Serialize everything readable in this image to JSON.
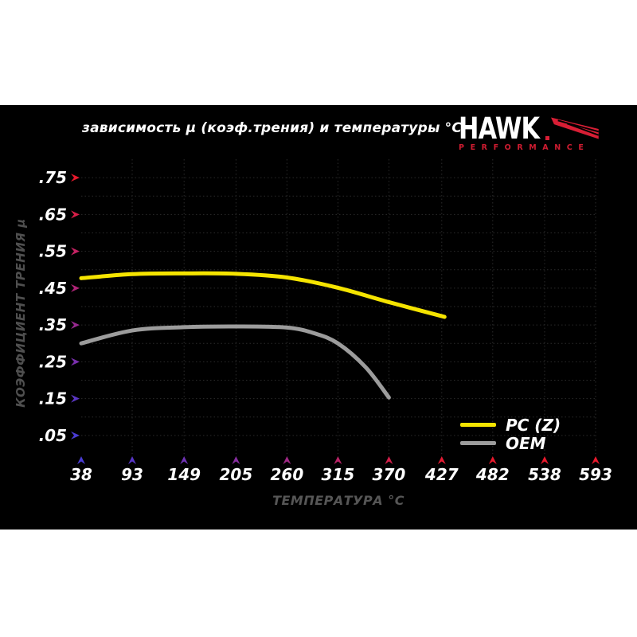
{
  "page": {
    "background": "#ffffff",
    "panel_background": "#000000"
  },
  "header": {
    "title": "зависимость μ (коэф.трения) и температуры °C"
  },
  "logo": {
    "brand": "HAWK",
    "subbrand": "PERFORMANCE",
    "brand_color": "#ffffff",
    "accent_color": "#d81e35"
  },
  "chart_data": {
    "type": "line",
    "title": "зависимость μ (коэф.трения) и температуры °C",
    "xlabel": "ТЕМПЕРАТУРА °C",
    "ylabel": "КОЭФФИЦИЕНТ ТРЕНИЯ μ",
    "xlim": [
      38,
      593
    ],
    "ylim": [
      0,
      0.8
    ],
    "x_ticks": [
      38,
      93,
      149,
      205,
      260,
      315,
      370,
      427,
      482,
      538,
      593
    ],
    "y_ticks": [
      0.75,
      0.65,
      0.55,
      0.45,
      0.35,
      0.25,
      0.15,
      0.05
    ],
    "y_tick_labels": [
      ".75",
      ".65",
      ".55",
      ".45",
      ".35",
      ".25",
      ".15",
      ".05"
    ],
    "grid": {
      "horizontal_step": 0.05,
      "vertical_at_ticks": true,
      "color": "#2b2b2b",
      "style": "dotted"
    },
    "legend_position": "lower right",
    "axis_style": {
      "y_gradient": [
        {
          "offset": "0%",
          "color": "#e8192c"
        },
        {
          "offset": "45%",
          "color": "#c02070"
        },
        {
          "offset": "70%",
          "color": "#8c2b9b"
        },
        {
          "offset": "96%",
          "color": "#4a3cd4"
        }
      ],
      "x_gradient": [
        {
          "offset": "0%",
          "color": "#4a3cd4"
        },
        {
          "offset": "30%",
          "color": "#8c2b9b"
        },
        {
          "offset": "50%",
          "color": "#c02070"
        },
        {
          "offset": "70%",
          "color": "#e8192c"
        },
        {
          "offset": "100%",
          "color": "#e8192c"
        }
      ],
      "y_tick_arrow_colors": [
        "#e8192c",
        "#d81e48",
        "#c52263",
        "#b02478",
        "#97288f",
        "#7a2fae",
        "#5b36c4",
        "#4a3cd4"
      ],
      "x_tick_arrow_colors": [
        "#4a3cd4",
        "#5836c7",
        "#6e32b4",
        "#862d9f",
        "#a02886",
        "#bb2468",
        "#d21f4a",
        "#e41b33",
        "#e8192c",
        "#e8192c",
        "#e8192c"
      ],
      "tick_label_color": "#ffffff"
    },
    "series": [
      {
        "name": "PC (Z)",
        "color": "#f5e400",
        "points": [
          [
            38,
            0.477
          ],
          [
            93,
            0.488
          ],
          [
            149,
            0.49
          ],
          [
            205,
            0.489
          ],
          [
            260,
            0.479
          ],
          [
            315,
            0.451
          ],
          [
            370,
            0.412
          ],
          [
            430,
            0.372
          ]
        ]
      },
      {
        "name": "OEM",
        "color": "#9c9c9c",
        "points": [
          [
            38,
            0.3
          ],
          [
            93,
            0.335
          ],
          [
            149,
            0.344
          ],
          [
            205,
            0.346
          ],
          [
            260,
            0.343
          ],
          [
            290,
            0.327
          ],
          [
            315,
            0.3
          ],
          [
            345,
            0.235
          ],
          [
            370,
            0.153
          ]
        ]
      }
    ]
  }
}
